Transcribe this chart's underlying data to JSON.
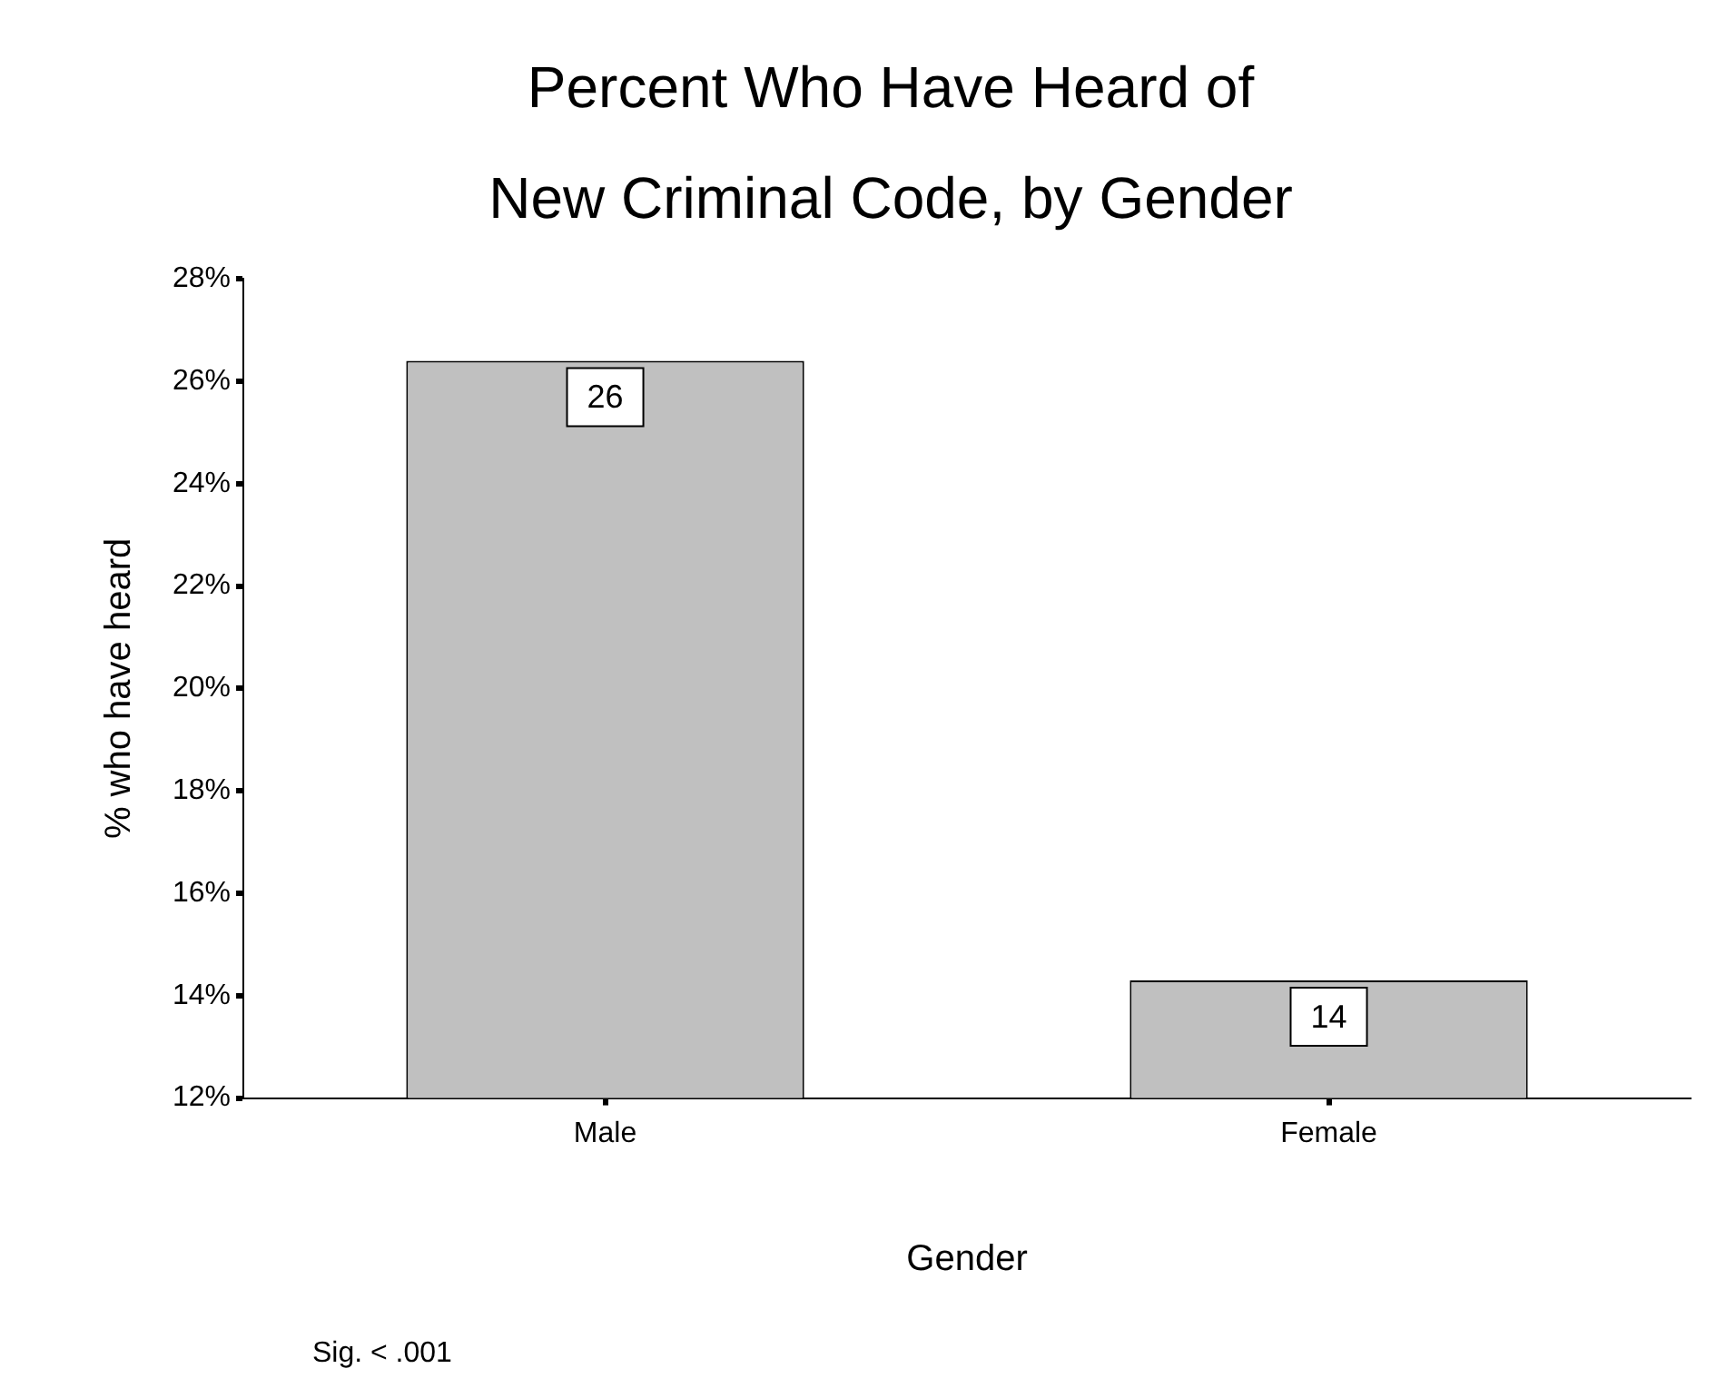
{
  "chart_data": {
    "type": "bar",
    "title": [
      "Percent Who Have Heard of",
      "New Criminal Code, by Gender"
    ],
    "xlabel": "Gender",
    "ylabel": "% who have heard",
    "categories": [
      "Male",
      "Female"
    ],
    "values": [
      26.4,
      14.3
    ],
    "value_labels": [
      "26",
      "14"
    ],
    "color": "#c0c0c0",
    "ylim": [
      12,
      28
    ],
    "yticks": [
      {
        "value": 12,
        "label": "12%"
      },
      {
        "value": 14,
        "label": "14%"
      },
      {
        "value": 16,
        "label": "16%"
      },
      {
        "value": 18,
        "label": "18%"
      },
      {
        "value": 20,
        "label": "20%"
      },
      {
        "value": 22,
        "label": "22%"
      },
      {
        "value": 24,
        "label": "24%"
      },
      {
        "value": 26,
        "label": "26%"
      },
      {
        "value": 28,
        "label": "28%"
      }
    ],
    "grid": false,
    "legend": false,
    "annotations": [
      "Sig. < .001"
    ]
  }
}
